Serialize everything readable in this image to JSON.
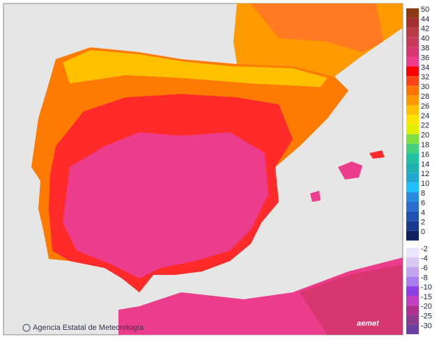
{
  "credit": "Agencia Estatal de Meteorología",
  "logo": "aemet",
  "legend": {
    "warm": [
      {
        "label": 50,
        "color": "#8b3a12"
      },
      {
        "label": 44,
        "color": "#a3302e"
      },
      {
        "label": 42,
        "color": "#b83a44"
      },
      {
        "label": 40,
        "color": "#c83a5c"
      },
      {
        "label": 38,
        "color": "#d8366e"
      },
      {
        "label": 36,
        "color": "#ec3c8c"
      },
      {
        "label": 34,
        "color": "#ff0000"
      },
      {
        "label": 32,
        "color": "#ff4418"
      },
      {
        "label": 30,
        "color": "#ff7400"
      },
      {
        "label": 28,
        "color": "#ff9a00"
      },
      {
        "label": 26,
        "color": "#ffc000"
      },
      {
        "label": 24,
        "color": "#ffe400"
      },
      {
        "label": 22,
        "color": "#e0f000"
      },
      {
        "label": 20,
        "color": "#80e040"
      },
      {
        "label": 18,
        "color": "#40d080"
      },
      {
        "label": 16,
        "color": "#20c0a0"
      },
      {
        "label": 14,
        "color": "#20b0b0"
      },
      {
        "label": 12,
        "color": "#20a8d0"
      },
      {
        "label": 10,
        "color": "#20c0ff"
      },
      {
        "label": 8,
        "color": "#2a8ae0"
      },
      {
        "label": 6,
        "color": "#2a6ed0"
      },
      {
        "label": 4,
        "color": "#2050b0"
      },
      {
        "label": 2,
        "color": "#1a3a90"
      },
      {
        "label": 0,
        "color": "#102060"
      }
    ],
    "cold": [
      {
        "label": -2,
        "color": "#ece4fa"
      },
      {
        "label": -4,
        "color": "#d8c8f2"
      },
      {
        "label": -6,
        "color": "#c4a4f0"
      },
      {
        "label": -8,
        "color": "#aa80f0"
      },
      {
        "label": -10,
        "color": "#8c40e8"
      },
      {
        "label": -15,
        "color": "#c040c0"
      },
      {
        "label": -20,
        "color": "#b03090"
      },
      {
        "label": -25,
        "color": "#8c3c8c"
      },
      {
        "label": -30,
        "color": "#6c40a0"
      }
    ]
  }
}
